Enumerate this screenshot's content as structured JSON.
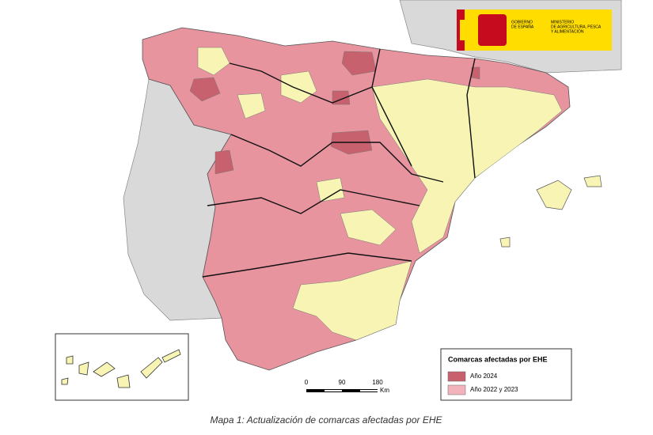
{
  "logo": {
    "government": [
      "GOBIERNO",
      "DE ESPAÑA"
    ],
    "ministry": [
      "MINISTERIO",
      "DE AGRICULTURA, PESCA",
      "Y ALIMENTACIÓN"
    ]
  },
  "legend": {
    "title": "Comarcas afectadas por EHE",
    "items": [
      {
        "label": "Año 2024",
        "color": "#c8616e"
      },
      {
        "label": "Año 2022 y 2023",
        "color": "#f2b3bd"
      }
    ]
  },
  "scale_bar": {
    "ticks": [
      0,
      90,
      180
    ],
    "unit": "Km"
  },
  "caption": "Mapa 1: Actualización de comarcas afectadas por EHE"
}
